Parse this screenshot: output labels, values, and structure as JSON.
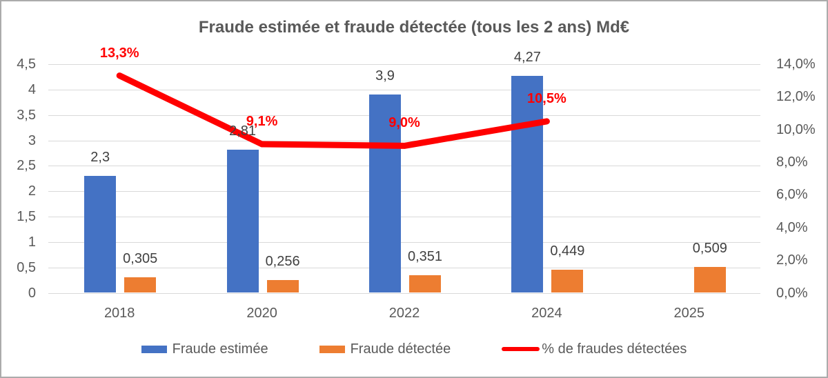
{
  "title": "Fraude estimée et fraude détectée (tous les 2 ans) Md€",
  "colors": {
    "bar_estimee": "#4472C4",
    "bar_detectee": "#ED7D31",
    "line_pct": "#FF0000",
    "axis_text": "#595959",
    "data_label": "#404040",
    "gridline": "#D9D9D9",
    "border": "#ABABAB",
    "background": "#FFFFFF"
  },
  "chart_data": {
    "type": "bar",
    "subtype": "combo bar + line, dual axis",
    "title": "Fraude estimée et fraude détectée (tous les 2 ans) Md€",
    "categories": [
      "2018",
      "2020",
      "2022",
      "2024",
      "2025"
    ],
    "series": [
      {
        "name": "Fraude estimée",
        "type": "bar",
        "axis": "left",
        "color": "#4472C4",
        "values": [
          2.3,
          2.81,
          3.9,
          4.27,
          null
        ],
        "labels": [
          "2,3",
          "2,81",
          "3,9",
          "4,27",
          null
        ]
      },
      {
        "name": "Fraude détectée",
        "type": "bar",
        "axis": "left",
        "color": "#ED7D31",
        "values": [
          0.305,
          0.256,
          0.351,
          0.449,
          0.509
        ],
        "labels": [
          "0,305",
          "0,256",
          "0,351",
          "0,449",
          "0,509"
        ]
      },
      {
        "name": "% de fraudes détectées",
        "type": "line",
        "axis": "right",
        "color": "#FF0000",
        "values": [
          13.3,
          9.1,
          9.0,
          10.5,
          null
        ],
        "labels": [
          "13,3%",
          "9,1%",
          "9,0%",
          "10,5%",
          null
        ]
      }
    ],
    "left_axis": {
      "min": 0,
      "max": 4.5,
      "step": 0.5,
      "ticks": [
        "4,5",
        "4",
        "3,5",
        "3",
        "2,5",
        "2",
        "1,5",
        "1",
        "0,5",
        "0"
      ]
    },
    "right_axis": {
      "min": 0,
      "max": 14,
      "step": 2,
      "ticks": [
        "14,0%",
        "12,0%",
        "10,0%",
        "8,0%",
        "6,0%",
        "4,0%",
        "2,0%",
        "0,0%"
      ]
    },
    "grid": true,
    "legend_position": "bottom"
  },
  "legend": {
    "items": [
      {
        "label": "Fraude estimée",
        "swatch": "bar",
        "color": "#4472C4"
      },
      {
        "label": "Fraude détectée",
        "swatch": "bar",
        "color": "#ED7D31"
      },
      {
        "label": "% de fraudes détectées",
        "swatch": "line",
        "color": "#FF0000"
      }
    ]
  }
}
